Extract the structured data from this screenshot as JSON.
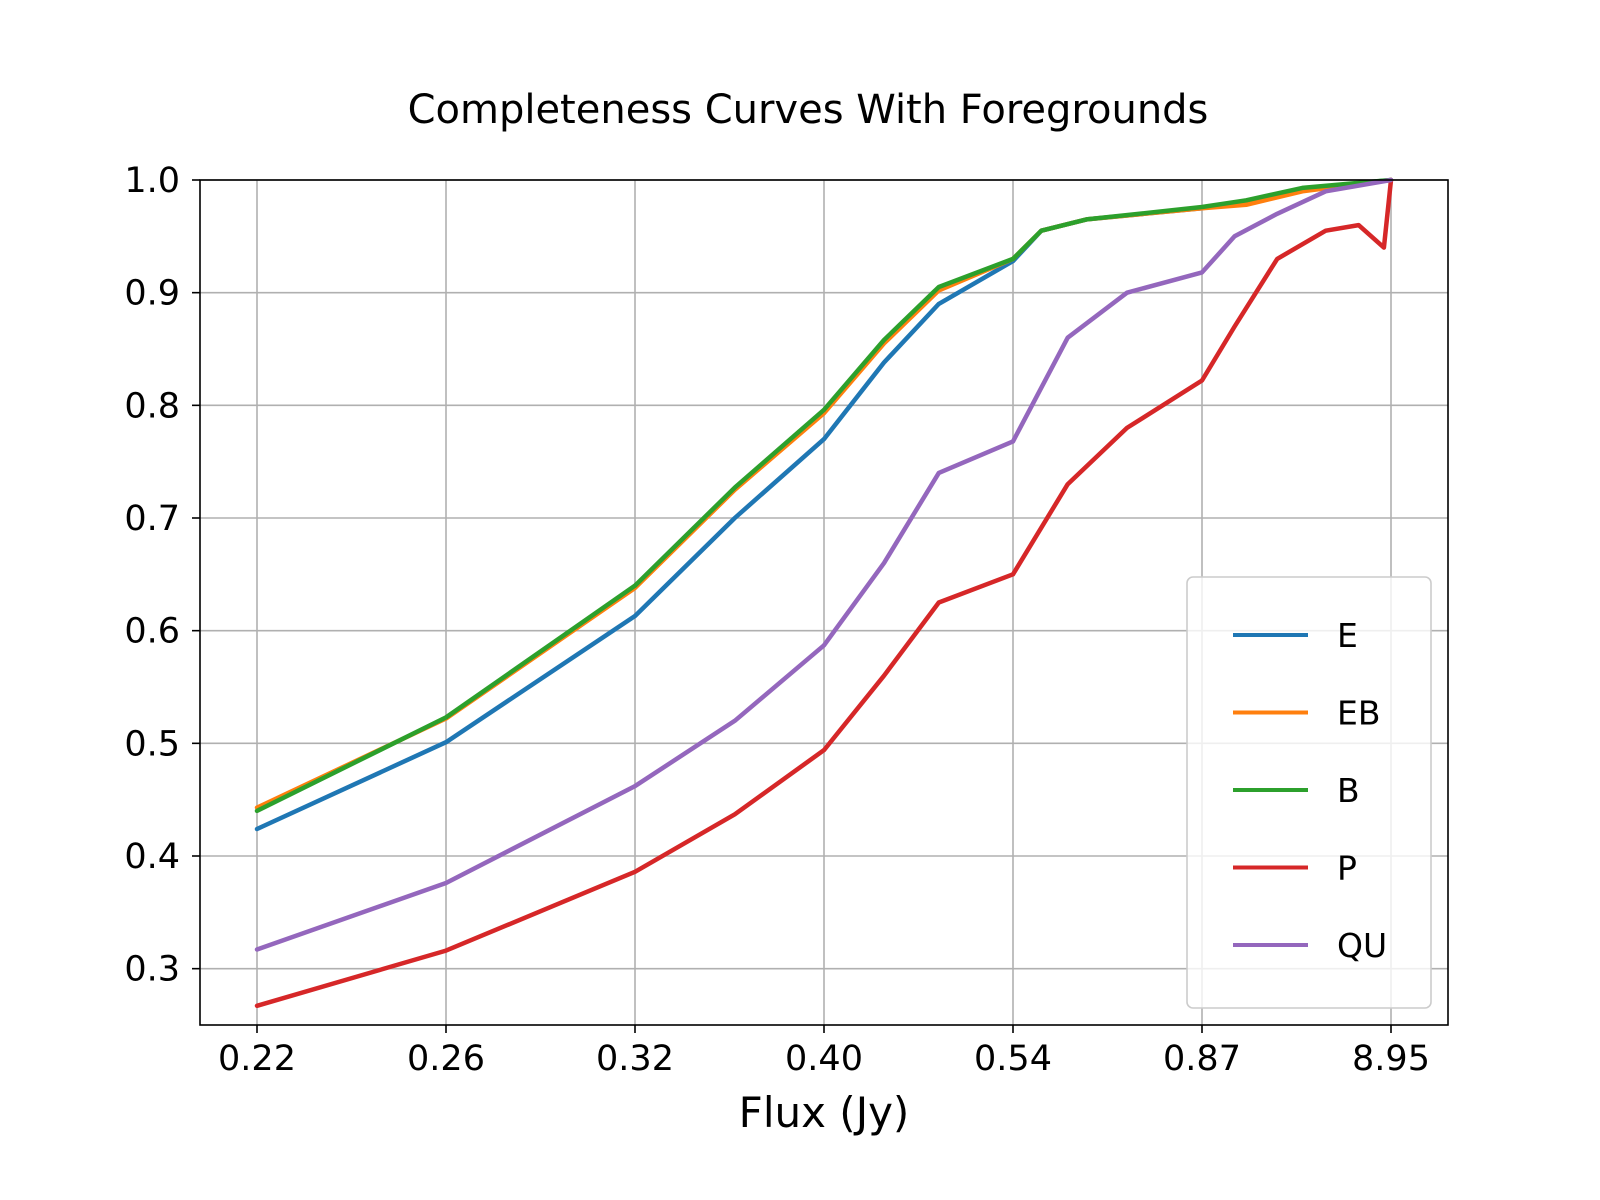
{
  "chart_data": {
    "type": "line",
    "title": "Completeness Curves With Foregrounds",
    "xlabel": "Flux (Jy)",
    "ylabel": "",
    "x_scale": "quantile-spaced (evenly spaced tick positions)",
    "x_tick_labels": [
      "0.22",
      "0.26",
      "0.32",
      "0.40",
      "0.54",
      "0.87",
      "8.95"
    ],
    "x_range_ticks": [
      0.22,
      8.95
    ],
    "ylim": [
      0.25,
      1.0
    ],
    "y_ticks": [
      "0.3",
      "0.4",
      "0.5",
      "0.6",
      "0.7",
      "0.8",
      "0.9",
      "1.0"
    ],
    "grid": true,
    "legend_position": "lower-right",
    "series": [
      {
        "name": "E",
        "color": "#1f77b4",
        "points": [
          [
            0.22,
            0.424
          ],
          [
            0.26,
            0.501
          ],
          [
            0.32,
            0.613
          ],
          [
            0.36,
            0.7
          ],
          [
            0.4,
            0.77
          ],
          [
            0.44,
            0.838
          ],
          [
            0.48,
            0.89
          ],
          [
            0.54,
            0.928
          ],
          [
            0.58,
            0.955
          ],
          [
            0.65,
            0.965
          ],
          [
            0.87,
            0.975
          ],
          [
            1.5,
            0.98
          ],
          [
            3.0,
            0.992
          ],
          [
            8.95,
            1.0
          ]
        ]
      },
      {
        "name": "EB",
        "color": "#ff7f0e",
        "points": [
          [
            0.22,
            0.443
          ],
          [
            0.26,
            0.522
          ],
          [
            0.32,
            0.638
          ],
          [
            0.36,
            0.725
          ],
          [
            0.4,
            0.793
          ],
          [
            0.44,
            0.855
          ],
          [
            0.48,
            0.902
          ],
          [
            0.54,
            0.93
          ],
          [
            0.58,
            0.955
          ],
          [
            0.65,
            0.965
          ],
          [
            0.87,
            0.975
          ],
          [
            1.5,
            0.978
          ],
          [
            3.0,
            0.99
          ],
          [
            8.95,
            1.0
          ]
        ]
      },
      {
        "name": "B",
        "color": "#2ca02c",
        "points": [
          [
            0.22,
            0.44
          ],
          [
            0.26,
            0.523
          ],
          [
            0.32,
            0.64
          ],
          [
            0.36,
            0.727
          ],
          [
            0.4,
            0.796
          ],
          [
            0.44,
            0.858
          ],
          [
            0.48,
            0.905
          ],
          [
            0.54,
            0.93
          ],
          [
            0.58,
            0.955
          ],
          [
            0.65,
            0.965
          ],
          [
            0.87,
            0.976
          ],
          [
            1.5,
            0.982
          ],
          [
            3.0,
            0.993
          ],
          [
            8.95,
            1.0
          ]
        ]
      },
      {
        "name": "P",
        "color": "#d62728",
        "points": [
          [
            0.22,
            0.267
          ],
          [
            0.26,
            0.316
          ],
          [
            0.32,
            0.386
          ],
          [
            0.36,
            0.437
          ],
          [
            0.4,
            0.494
          ],
          [
            0.44,
            0.56
          ],
          [
            0.48,
            0.625
          ],
          [
            0.54,
            0.65
          ],
          [
            0.62,
            0.73
          ],
          [
            0.72,
            0.78
          ],
          [
            0.87,
            0.822
          ],
          [
            1.3,
            0.87
          ],
          [
            2.2,
            0.93
          ],
          [
            4.0,
            0.955
          ],
          [
            6.0,
            0.96
          ],
          [
            8.2,
            0.94
          ],
          [
            8.95,
            1.0
          ]
        ]
      },
      {
        "name": "QU",
        "color": "#9467bd",
        "points": [
          [
            0.22,
            0.317
          ],
          [
            0.26,
            0.376
          ],
          [
            0.32,
            0.462
          ],
          [
            0.36,
            0.52
          ],
          [
            0.4,
            0.587
          ],
          [
            0.44,
            0.66
          ],
          [
            0.48,
            0.74
          ],
          [
            0.54,
            0.768
          ],
          [
            0.62,
            0.86
          ],
          [
            0.72,
            0.9
          ],
          [
            0.87,
            0.918
          ],
          [
            1.3,
            0.95
          ],
          [
            2.2,
            0.97
          ],
          [
            4.0,
            0.99
          ],
          [
            8.95,
            1.0
          ]
        ]
      }
    ]
  }
}
